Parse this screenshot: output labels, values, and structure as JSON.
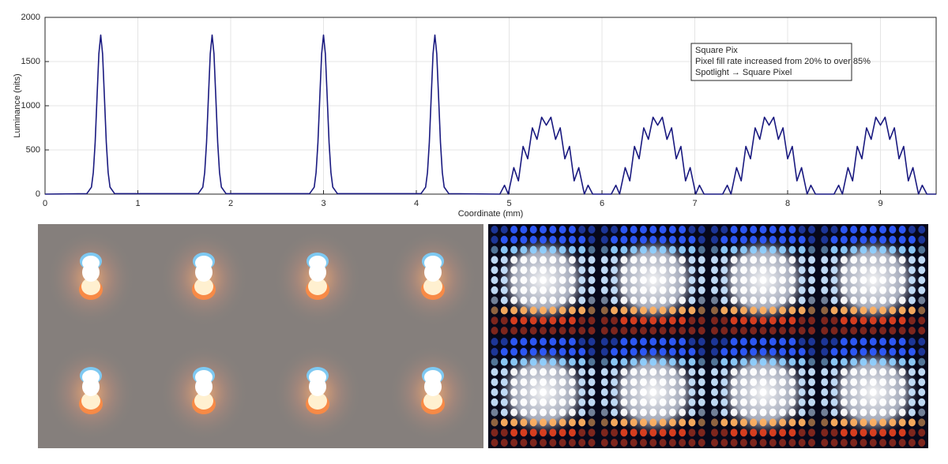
{
  "chart_data": {
    "type": "line",
    "x_label": "Coordinate (mm)",
    "y_label": "Luminance (nits)",
    "annotation": [
      "Square Pix",
      "Pixel fill rate increased from 20% to over 85%",
      "Spotlight → Square Pixel"
    ],
    "color": "#1a1a80",
    "grid": true,
    "xlim": [
      0,
      9.6
    ],
    "ylim": [
      0,
      2000
    ],
    "xticks": [
      0,
      1,
      2,
      3,
      4,
      5,
      6,
      7,
      8,
      9
    ],
    "yticks": [
      0,
      500,
      1000,
      1500,
      2000
    ],
    "x": [
      0,
      0.45,
      0.5,
      0.52,
      0.54,
      0.56,
      0.58,
      0.6,
      0.62,
      0.64,
      0.66,
      0.68,
      0.7,
      0.75,
      1.65,
      1.7,
      1.72,
      1.74,
      1.76,
      1.78,
      1.8,
      1.82,
      1.84,
      1.86,
      1.88,
      1.9,
      1.95,
      2.85,
      2.9,
      2.92,
      2.94,
      2.96,
      2.98,
      3.0,
      3.02,
      3.04,
      3.06,
      3.08,
      3.1,
      3.15,
      4.05,
      4.1,
      4.12,
      4.14,
      4.16,
      4.18,
      4.2,
      4.22,
      4.24,
      4.26,
      4.28,
      4.3,
      4.35,
      4.9,
      4.95,
      4.99,
      5.05,
      5.1,
      5.15,
      5.2,
      5.25,
      5.3,
      5.35,
      5.4,
      5.45,
      5.5,
      5.55,
      5.6,
      5.65,
      5.7,
      5.75,
      5.81,
      5.85,
      5.9,
      6.1,
      6.15,
      6.19,
      6.25,
      6.3,
      6.35,
      6.4,
      6.45,
      6.5,
      6.55,
      6.6,
      6.65,
      6.7,
      6.75,
      6.8,
      6.85,
      6.9,
      6.95,
      7.01,
      7.05,
      7.1,
      7.3,
      7.35,
      7.39,
      7.45,
      7.5,
      7.55,
      7.6,
      7.65,
      7.7,
      7.75,
      7.8,
      7.85,
      7.9,
      7.95,
      8.0,
      8.05,
      8.1,
      8.15,
      8.21,
      8.25,
      8.3,
      8.5,
      8.55,
      8.59,
      8.65,
      8.7,
      8.75,
      8.8,
      8.85,
      8.9,
      8.95,
      9.0,
      9.05,
      9.1,
      9.15,
      9.2,
      9.25,
      9.3,
      9.35,
      9.41,
      9.45,
      9.5,
      9.6
    ],
    "values": [
      0,
      5,
      79,
      244,
      584,
      1092,
      1588,
      1800,
      1588,
      1092,
      584,
      244,
      79,
      5,
      5,
      79,
      244,
      584,
      1092,
      1588,
      1800,
      1588,
      1092,
      584,
      244,
      79,
      5,
      5,
      79,
      244,
      584,
      1092,
      1588,
      1800,
      1588,
      1092,
      584,
      244,
      79,
      5,
      5,
      79,
      244,
      584,
      1092,
      1588,
      1800,
      1588,
      1092,
      584,
      244,
      79,
      5,
      0,
      100,
      0,
      300,
      150,
      540,
      400,
      750,
      620,
      870,
      780,
      870,
      620,
      750,
      400,
      540,
      150,
      300,
      0,
      100,
      0,
      0,
      100,
      0,
      300,
      150,
      540,
      400,
      750,
      620,
      870,
      780,
      870,
      620,
      750,
      400,
      540,
      150,
      300,
      0,
      100,
      0,
      0,
      100,
      0,
      300,
      150,
      540,
      400,
      750,
      620,
      870,
      780,
      870,
      620,
      750,
      400,
      540,
      150,
      300,
      0,
      100,
      0,
      0,
      100,
      0,
      300,
      150,
      540,
      400,
      750,
      620,
      870,
      780,
      870,
      620,
      750,
      400,
      540,
      150,
      300,
      0,
      100,
      0,
      0
    ]
  }
}
